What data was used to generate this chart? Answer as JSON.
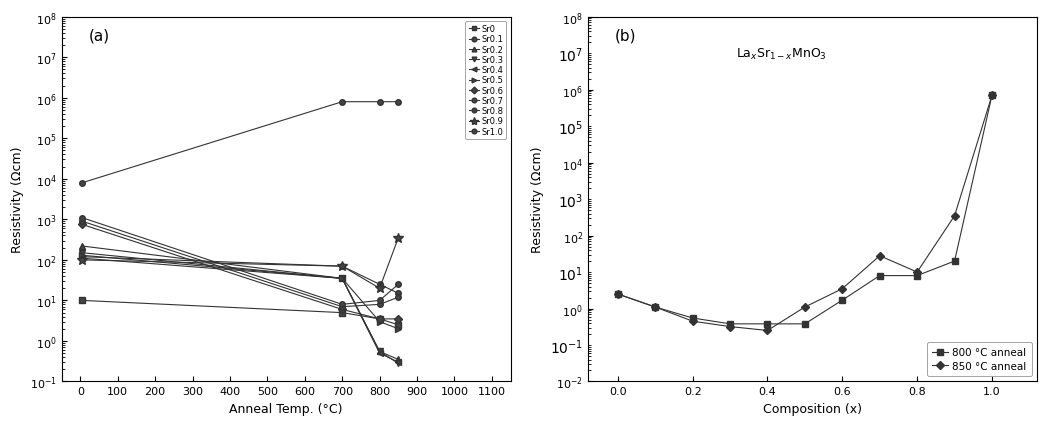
{
  "panel_a": {
    "title": "(a)",
    "xlabel": "Anneal Temp. (°C)",
    "ylabel": "Resistivity (Ωcm)",
    "ylim": [
      0.1,
      100000000.0
    ],
    "xlim": [
      -50,
      1150
    ],
    "xticks": [
      0,
      100,
      200,
      300,
      400,
      500,
      600,
      700,
      800,
      900,
      1000,
      1100
    ],
    "series": [
      {
        "label": "Sr0",
        "marker": "s",
        "x": [
          5,
          700,
          800,
          850
        ],
        "y": [
          10.0,
          5.0,
          3.5,
          2.5
        ]
      },
      {
        "label": "Sr0.1",
        "marker": "o",
        "x": [
          5,
          700,
          800,
          850
        ],
        "y": [
          120,
          70,
          25,
          15
        ]
      },
      {
        "label": "Sr0.2",
        "marker": "^",
        "x": [
          5,
          700,
          800,
          850
        ],
        "y": [
          220,
          35,
          0.55,
          0.35
        ]
      },
      {
        "label": "Sr0.3",
        "marker": "v",
        "x": [
          5,
          700,
          800,
          850
        ],
        "y": [
          150,
          35,
          0.55,
          0.28
        ]
      },
      {
        "label": "Sr0.4",
        "marker": "<",
        "x": [
          5,
          700,
          800,
          850
        ],
        "y": [
          110,
          35,
          0.5,
          0.3
        ]
      },
      {
        "label": "Sr0.5",
        "marker": ">",
        "x": [
          5,
          700,
          800,
          850
        ],
        "y": [
          130,
          35,
          3.0,
          2.0
        ]
      },
      {
        "label": "Sr0.6",
        "marker": "D",
        "x": [
          5,
          700,
          800,
          850
        ],
        "y": [
          750,
          6,
          3.5,
          3.5
        ]
      },
      {
        "label": "Sr0.7",
        "marker": "o",
        "x": [
          5,
          700,
          800,
          850
        ],
        "y": [
          900,
          7,
          8,
          12
        ]
      },
      {
        "label": "Sr0.8",
        "marker": "o",
        "x": [
          5,
          700,
          800,
          850
        ],
        "y": [
          1100,
          8,
          10,
          25
        ]
      },
      {
        "label": "Sr0.9",
        "marker": "*",
        "x": [
          5,
          700,
          800,
          850
        ],
        "y": [
          100,
          70,
          20,
          350
        ]
      },
      {
        "label": "Sr1.0",
        "marker": "o",
        "x": [
          5,
          700,
          800,
          850
        ],
        "y": [
          8000,
          800000,
          800000,
          800000
        ]
      }
    ]
  },
  "panel_b": {
    "title": "(b)",
    "formula": "La$_x$Sr$_{1-x}$MnO$_3$",
    "xlabel": "Composition (x)",
    "ylabel": "Resistivity (Ωcm)",
    "ylim": [
      0.01,
      100000000.0
    ],
    "xlim": [
      -0.08,
      1.12
    ],
    "xticks": [
      0.0,
      0.2,
      0.4,
      0.6,
      0.8,
      1.0
    ],
    "series_800": {
      "label": "800 °C anneal",
      "marker": "s",
      "x": [
        0.0,
        0.1,
        0.2,
        0.3,
        0.4,
        0.5,
        0.6,
        0.7,
        0.8,
        0.9,
        1.0
      ],
      "y": [
        2.5,
        1.1,
        0.55,
        0.38,
        0.38,
        0.38,
        1.7,
        8.0,
        8.0,
        20.0,
        700000
      ]
    },
    "series_850": {
      "label": "850 °C anneal",
      "marker": "D",
      "x": [
        0.0,
        0.1,
        0.2,
        0.3,
        0.4,
        0.5,
        0.6,
        0.7,
        0.8,
        0.9,
        1.0
      ],
      "y": [
        2.5,
        1.1,
        0.45,
        0.32,
        0.25,
        1.1,
        3.5,
        28.0,
        10.0,
        350.0,
        700000
      ]
    }
  }
}
